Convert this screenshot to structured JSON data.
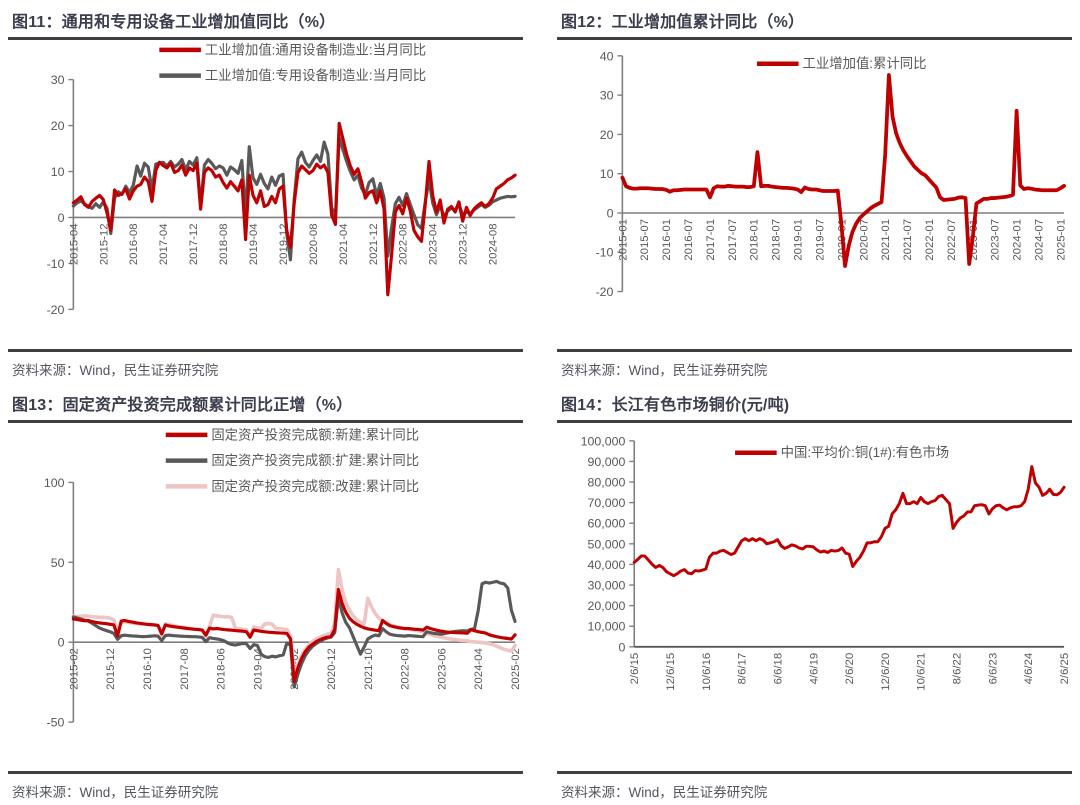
{
  "page": {
    "source_note": "资料来源：Wind，民生证券研究院"
  },
  "colors": {
    "accent_red": "#C00000",
    "series_gray": "#595959",
    "series_pink": "#EFC4C4",
    "axis": "#7f7f7f",
    "tick_text": "#595959",
    "title_text": "#3a3e4d",
    "rule": "#404040"
  },
  "chart_data": [
    {
      "type": "line",
      "title": "图11：通用和专用设备工业增加值同比（%）",
      "source": "资料来源：Wind，民生证券研究院",
      "ylim": [
        -20,
        30
      ],
      "ytick_labels": [
        "30",
        "20",
        "10",
        "0",
        "-10",
        "-20"
      ],
      "xtick_every": 8,
      "xtick_labels": [
        "2015-04",
        "2015-12",
        "2016-08",
        "2017-04",
        "2017-12",
        "2018-08",
        "2019-04",
        "2019-12",
        "2020-08",
        "2021-04",
        "2021-12",
        "2022-08",
        "2023-04",
        "2023-12",
        "2024-08"
      ],
      "legend_position": "top-center",
      "grid": false,
      "series": [
        {
          "name": "工业增加值:通用设备制造业:当月同比",
          "color": "#C00000",
          "values": [
            3.2,
            3.8,
            4.5,
            2.8,
            2.2,
            3.5,
            4.2,
            4.8,
            3.9,
            1.0,
            -2.8,
            6.0,
            4.8,
            5.2,
            6.2,
            4.0,
            5.8,
            6.8,
            7.2,
            8.8,
            7.8,
            3.5,
            10.2,
            12.0,
            11.3,
            10.8,
            11.8,
            9.8,
            10.2,
            11.4,
            9.2,
            10.8,
            10.2,
            11.8,
            1.8,
            9.8,
            10.8,
            10.2,
            8.8,
            9.2,
            7.6,
            6.4,
            7.8,
            6.8,
            5.8,
            8.2,
            -4.8,
            9.2,
            4.8,
            3.2,
            5.8,
            2.4,
            2.8,
            4.6,
            3.2,
            6.2,
            6.8,
            -2.8,
            -6.5,
            3.2,
            9.8,
            11.2,
            10.4,
            9.6,
            10.2,
            11.6,
            10.8,
            11.4,
            9.8,
            0.5,
            -1.5,
            20.5,
            17.2,
            13.8,
            11.2,
            9.4,
            10.6,
            7.8,
            4.2,
            5.4,
            5.8,
            3.2,
            5.8,
            1.8,
            -16.8,
            -8.2,
            1.2,
            2.6,
            0.8,
            4.2,
            1.4,
            -2.8,
            -4.2,
            -5.2,
            2.8,
            12.2,
            4.8,
            1.2,
            3.8,
            -1.2,
            1.8,
            2.4,
            1.2,
            3.4,
            -0.8,
            2.2,
            0.4,
            1.8,
            2.6,
            3.2,
            2.4,
            3.0,
            4.2,
            6.2,
            6.8,
            7.4,
            8.2,
            8.6,
            9.2
          ]
        },
        {
          "name": "工业增加值:专用设备制造业:当月同比",
          "color": "#595959",
          "values": [
            2.5,
            3.2,
            3.6,
            3.0,
            2.4,
            2.0,
            3.0,
            2.2,
            3.4,
            2.0,
            -3.5,
            4.2,
            5.6,
            5.0,
            6.8,
            5.4,
            7.0,
            11.2,
            9.0,
            11.8,
            11.0,
            6.0,
            11.6,
            11.8,
            12.0,
            11.2,
            12.2,
            11.0,
            11.6,
            12.6,
            10.4,
            12.2,
            11.4,
            13.0,
            2.4,
            11.4,
            12.6,
            11.8,
            10.6,
            11.2,
            10.8,
            9.2,
            11.0,
            10.4,
            9.6,
            12.4,
            0.4,
            15.4,
            8.6,
            7.2,
            9.4,
            7.4,
            6.2,
            8.8,
            7.0,
            9.0,
            9.4,
            -3.5,
            -9.2,
            4.0,
            12.8,
            14.2,
            12.0,
            11.0,
            12.4,
            13.6,
            12.2,
            16.4,
            13.8,
            2.2,
            0.2,
            17.4,
            14.8,
            12.2,
            10.0,
            8.2,
            9.2,
            6.4,
            5.0,
            7.6,
            8.4,
            4.8,
            7.4,
            4.2,
            -8.4,
            -2.2,
            3.0,
            4.4,
            2.6,
            5.2,
            2.8,
            0.6,
            -1.6,
            -2.4,
            3.4,
            8.2,
            3.2,
            0.6,
            2.6,
            0.2,
            1.4,
            2.0,
            1.6,
            2.8,
            0.6,
            1.2,
            0.8,
            1.6,
            2.2,
            2.8,
            2.2,
            2.6,
            3.4,
            3.8,
            4.2,
            4.4,
            4.6,
            4.5,
            4.6
          ]
        }
      ]
    },
    {
      "type": "line",
      "title": "图12：工业增加值累计同比（%）",
      "source": "资料来源：Wind，民生证券研究院",
      "ylim": [
        -20,
        40
      ],
      "ytick_labels": [
        "40",
        "30",
        "20",
        "10",
        "0",
        "-10",
        "-20"
      ],
      "xtick_every": 6,
      "xtick_labels": [
        "2015-01",
        "2015-07",
        "2016-01",
        "2016-07",
        "2017-01",
        "2017-07",
        "2018-01",
        "2018-07",
        "2019-01",
        "2019-07",
        "2020-01",
        "2020-07",
        "2021-01",
        "2021-07",
        "2022-01",
        "2022-07",
        "2023-01",
        "2023-07",
        "2024-01",
        "2024-07",
        "2025-01"
      ],
      "legend_position": "top-center",
      "grid": false,
      "series": [
        {
          "name": "工业增加值:累计同比",
          "color": "#C00000",
          "values": [
            9.0,
            6.8,
            6.4,
            6.2,
            6.2,
            6.3,
            6.3,
            6.3,
            6.2,
            6.1,
            6.1,
            6.1,
            5.9,
            5.4,
            5.8,
            5.8,
            5.9,
            6.0,
            6.0,
            6.0,
            6.0,
            6.0,
            6.0,
            6.0,
            4.0,
            6.3,
            6.8,
            6.7,
            6.7,
            6.9,
            6.8,
            6.7,
            6.7,
            6.7,
            6.6,
            6.6,
            6.8,
            15.5,
            6.8,
            6.9,
            6.9,
            6.7,
            6.6,
            6.5,
            6.4,
            6.4,
            6.3,
            6.2,
            6.0,
            5.3,
            6.5,
            6.1,
            6.0,
            6.0,
            5.8,
            5.6,
            5.6,
            5.6,
            5.6,
            5.7,
            -3.0,
            -13.5,
            -8.4,
            -4.9,
            -2.8,
            -1.3,
            -0.4,
            0.4,
            1.2,
            1.8,
            2.3,
            2.8,
            15.0,
            35.1,
            24.5,
            20.3,
            17.8,
            15.9,
            14.4,
            13.1,
            11.8,
            10.9,
            10.1,
            9.6,
            8.5,
            7.5,
            6.5,
            4.0,
            3.3,
            3.4,
            3.5,
            3.6,
            3.9,
            4.0,
            3.8,
            -13.0,
            -6.0,
            2.4,
            3.0,
            3.6,
            3.6,
            3.8,
            3.8,
            3.9,
            4.0,
            4.1,
            4.3,
            4.6,
            26.0,
            7.0,
            6.1,
            6.3,
            6.2,
            6.0,
            5.9,
            5.8,
            5.8,
            5.8,
            5.8,
            5.8,
            6.3,
            6.9
          ]
        }
      ]
    },
    {
      "type": "line",
      "title": "图13：固定资产投资完成额累计同比正增（%）",
      "source": "资料来源：Wind，民生证券研究院",
      "ylim": [
        -50,
        100
      ],
      "ytick_labels": [
        "100",
        "50",
        "0",
        "-50"
      ],
      "xtick_every": 10,
      "xtick_labels": [
        "2015-02",
        "2015-12",
        "2016-10",
        "2017-08",
        "2018-06",
        "2019-04",
        "2020-02",
        "2020-12",
        "2021-10",
        "2022-08",
        "2023-06",
        "2024-04",
        "2025-02"
      ],
      "legend_position": "top-center",
      "grid": false,
      "series": [
        {
          "name": "固定资产投资完成额:新建:累计同比",
          "color": "#C00000",
          "values": [
            14.5,
            14.2,
            13.8,
            13.4,
            13.6,
            12.9,
            12.5,
            12.1,
            11.8,
            11.6,
            11.2,
            10.8,
            3.8,
            13.2,
            13.6,
            13.0,
            12.6,
            12.2,
            11.8,
            11.5,
            11.2,
            11.0,
            10.8,
            10.5,
            5.2,
            10.8,
            10.2,
            9.8,
            9.5,
            9.2,
            8.9,
            8.6,
            8.3,
            8.1,
            7.9,
            7.6,
            4.4,
            8.8,
            8.3,
            8.6,
            8.2,
            7.9,
            7.7,
            7.5,
            7.3,
            7.1,
            6.9,
            6.6,
            3.2,
            7.6,
            7.2,
            6.8,
            6.5,
            6.3,
            6.1,
            5.9,
            5.8,
            5.7,
            5.5,
            2.0,
            -24.5,
            -16.0,
            -10.2,
            -6.0,
            -3.0,
            -1.2,
            0.4,
            1.6,
            2.5,
            3.1,
            3.6,
            8.0,
            33.0,
            24.5,
            18.8,
            15.0,
            12.8,
            11.2,
            10.0,
            9.0,
            8.4,
            7.9,
            7.5,
            7.2,
            13.6,
            11.8,
            10.4,
            9.7,
            9.2,
            8.8,
            8.5,
            8.6,
            8.3,
            8.1,
            7.9,
            7.6,
            9.4,
            8.6,
            7.9,
            7.3,
            6.9,
            6.5,
            6.3,
            6.1,
            6.0,
            5.9,
            5.8,
            5.6,
            7.8,
            7.2,
            6.6,
            6.1,
            5.7,
            4.6,
            4.0,
            3.4,
            3.0,
            2.6,
            2.3,
            2.0,
            4.6
          ]
        },
        {
          "name": "固定资产投资完成额:扩建:累计同比",
          "color": "#595959",
          "values": [
            15.8,
            15.2,
            14.6,
            13.8,
            13.2,
            12.0,
            10.5,
            9.0,
            8.0,
            7.2,
            6.5,
            5.5,
            1.8,
            4.0,
            4.4,
            4.1,
            3.9,
            3.8,
            3.6,
            3.5,
            3.6,
            3.8,
            4.0,
            3.8,
            1.0,
            4.2,
            4.4,
            4.2,
            4.0,
            3.8,
            3.7,
            3.6,
            3.5,
            3.4,
            3.3,
            3.0,
            0.4,
            2.8,
            2.4,
            2.0,
            1.6,
            0.8,
            -0.6,
            -1.4,
            -1.8,
            -1.2,
            -0.8,
            -1.0,
            -4.0,
            -1.5,
            -2.0,
            -7.5,
            -9.0,
            -9.5,
            -8.8,
            -9.2,
            -8.5,
            -8.0,
            -0.5,
            -2.0,
            -28.0,
            -20.0,
            -13.5,
            -8.5,
            -5.0,
            -2.5,
            -0.8,
            0.6,
            1.8,
            2.6,
            3.2,
            6.0,
            28.0,
            18.5,
            12.5,
            9.0,
            3.5,
            -2.0,
            -7.5,
            -3.0,
            2.0,
            3.5,
            4.5,
            4.0,
            8.5,
            6.5,
            5.0,
            4.5,
            4.2,
            4.0,
            3.8,
            4.2,
            4.0,
            3.8,
            3.6,
            3.5,
            6.5,
            6.0,
            5.5,
            5.2,
            5.0,
            5.5,
            6.0,
            6.5,
            6.8,
            7.0,
            7.2,
            7.0,
            8.0,
            8.5,
            20.0,
            36.5,
            37.5,
            37.0,
            37.5,
            38.0,
            37.0,
            36.5,
            34.0,
            20.0,
            13.0
          ]
        },
        {
          "name": "固定资产投资完成额:改建:累计同比",
          "color": "#EFC4C4",
          "values": [
            16.5,
            16.0,
            16.2,
            16.5,
            16.3,
            16.0,
            15.8,
            15.5,
            15.6,
            15.4,
            15.0,
            14.0,
            6.0,
            12.5,
            12.8,
            12.4,
            12.0,
            11.8,
            11.5,
            11.3,
            11.2,
            11.0,
            10.8,
            10.5,
            4.5,
            11.5,
            11.0,
            10.5,
            10.0,
            9.6,
            9.2,
            8.8,
            8.5,
            8.2,
            8.0,
            7.5,
            3.5,
            10.0,
            16.8,
            16.5,
            16.2,
            15.8,
            16.0,
            15.5,
            8.8,
            8.4,
            8.0,
            7.8,
            3.0,
            9.5,
            9.0,
            8.6,
            11.5,
            11.8,
            11.2,
            8.6,
            8.4,
            8.2,
            8.0,
            4.0,
            -20.5,
            -14.0,
            -8.5,
            -4.5,
            -1.5,
            0.5,
            2.0,
            3.2,
            4.2,
            5.0,
            5.6,
            12.0,
            45.5,
            33.0,
            25.0,
            20.0,
            16.5,
            14.0,
            12.5,
            11.5,
            27.5,
            22.0,
            18.0,
            15.0,
            13.5,
            12.0,
            11.0,
            10.2,
            9.6,
            9.0,
            8.6,
            8.2,
            7.8,
            7.4,
            7.0,
            6.5,
            5.5,
            4.8,
            4.2,
            3.6,
            3.0,
            2.6,
            2.2,
            1.8,
            1.5,
            1.2,
            1.0,
            0.8,
            0.4,
            0.2,
            0.0,
            -0.2,
            -0.5,
            -1.0,
            -1.5,
            -2.5,
            -3.5,
            -4.5,
            -5.0,
            -5.5,
            -2.0
          ]
        }
      ]
    },
    {
      "type": "line",
      "title": "图14：长江有色市场铜价(元/吨)",
      "source": "资料来源：Wind，民生证券研究院",
      "ylim": [
        0,
        100000
      ],
      "ytick_labels": [
        "100,000",
        "90,000",
        "80,000",
        "70,000",
        "60,000",
        "50,000",
        "40,000",
        "30,000",
        "20,000",
        "10,000",
        "0"
      ],
      "xtick_every": 10,
      "xtick_labels": [
        "2/6/15",
        "12/6/15",
        "10/6/16",
        "8/6/17",
        "6/6/18",
        "4/6/19",
        "2/6/20",
        "12/6/20",
        "10/6/21",
        "8/6/22",
        "6/6/23",
        "4/6/24",
        "2/6/25"
      ],
      "legend_position": "top-center",
      "grid": false,
      "series": [
        {
          "name": "中国:平均价:铜(1#):有色市场",
          "color": "#C00000",
          "values": [
            41000,
            42500,
            44200,
            44000,
            42000,
            40000,
            38500,
            39500,
            38500,
            36500,
            35500,
            34500,
            35500,
            36800,
            37500,
            35800,
            35500,
            37000,
            36800,
            37200,
            37800,
            43500,
            45500,
            45500,
            46500,
            46800,
            45800,
            44800,
            45500,
            48500,
            51500,
            52500,
            51500,
            52500,
            51500,
            52500,
            51800,
            50000,
            50500,
            51000,
            52000,
            49000,
            47800,
            48500,
            49500,
            49000,
            48000,
            47500,
            48800,
            48800,
            48500,
            47000,
            46000,
            46500,
            45800,
            46800,
            46500,
            46800,
            48000,
            45500,
            45000,
            39000,
            41500,
            43500,
            46500,
            50500,
            50500,
            51000,
            51000,
            53500,
            57500,
            58500,
            64500,
            66500,
            69500,
            74500,
            69500,
            69500,
            70500,
            69500,
            72500,
            70500,
            69500,
            70500,
            71000,
            73000,
            73500,
            71500,
            69500,
            57500,
            60500,
            62500,
            63500,
            65500,
            65500,
            68500,
            68800,
            69000,
            68500,
            64500,
            67000,
            68500,
            68800,
            67500,
            66500,
            67500,
            68000,
            68000,
            68500,
            70500,
            76500,
            87500,
            79500,
            77500,
            73500,
            74500,
            76500,
            74000,
            73800,
            75000,
            77500
          ]
        }
      ]
    }
  ]
}
